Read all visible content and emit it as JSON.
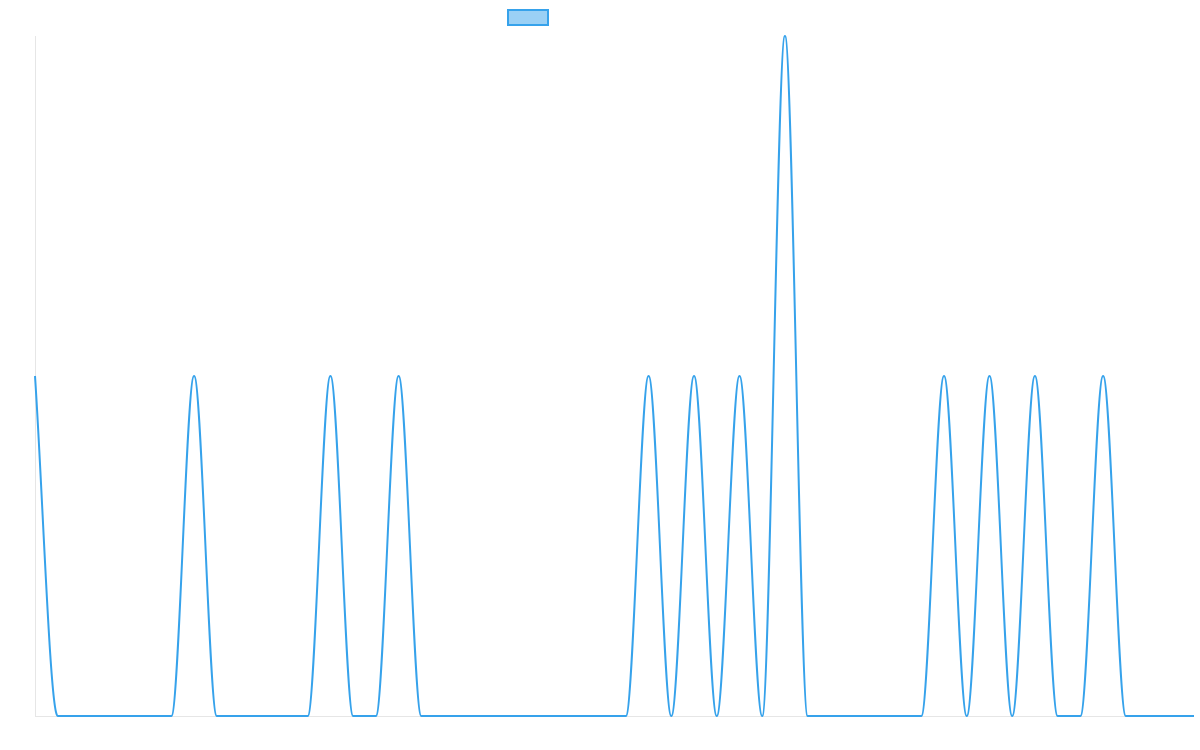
{
  "chart_data": {
    "type": "line",
    "title": "",
    "xlabel": "",
    "ylabel": "",
    "grid": false,
    "legend": {
      "position": "top-center",
      "entries": [
        {
          "name": "",
          "color": "#36a2eb",
          "fill": "rgba(54,162,235,0.5)"
        }
      ]
    },
    "x": [
      0,
      1,
      2,
      3,
      4,
      5,
      6,
      7,
      8,
      9,
      10,
      11,
      12,
      13,
      14,
      15,
      16,
      17,
      18,
      19,
      20,
      21,
      22,
      23,
      24,
      25,
      26,
      27,
      28,
      29,
      30,
      31,
      32,
      33,
      34,
      35,
      36,
      37,
      38,
      39,
      40,
      41,
      42,
      43,
      44,
      45,
      46,
      47,
      48,
      49,
      50,
      51
    ],
    "series": [
      {
        "name": "",
        "color": "#36a2eb",
        "values": [
          1,
          0,
          0,
          0,
          0,
          0,
          0,
          1,
          0,
          0,
          0,
          0,
          0,
          1,
          0,
          0,
          1,
          0,
          0,
          0,
          0,
          0,
          0,
          0,
          0,
          0,
          0,
          1,
          0,
          1,
          0,
          1,
          0,
          2,
          0,
          0,
          0,
          0,
          0,
          0,
          1,
          0,
          1,
          0,
          1,
          0,
          0,
          1,
          0,
          0,
          0,
          0
        ]
      }
    ],
    "xlim": [
      0,
      51
    ],
    "ylim": [
      0,
      2
    ]
  }
}
